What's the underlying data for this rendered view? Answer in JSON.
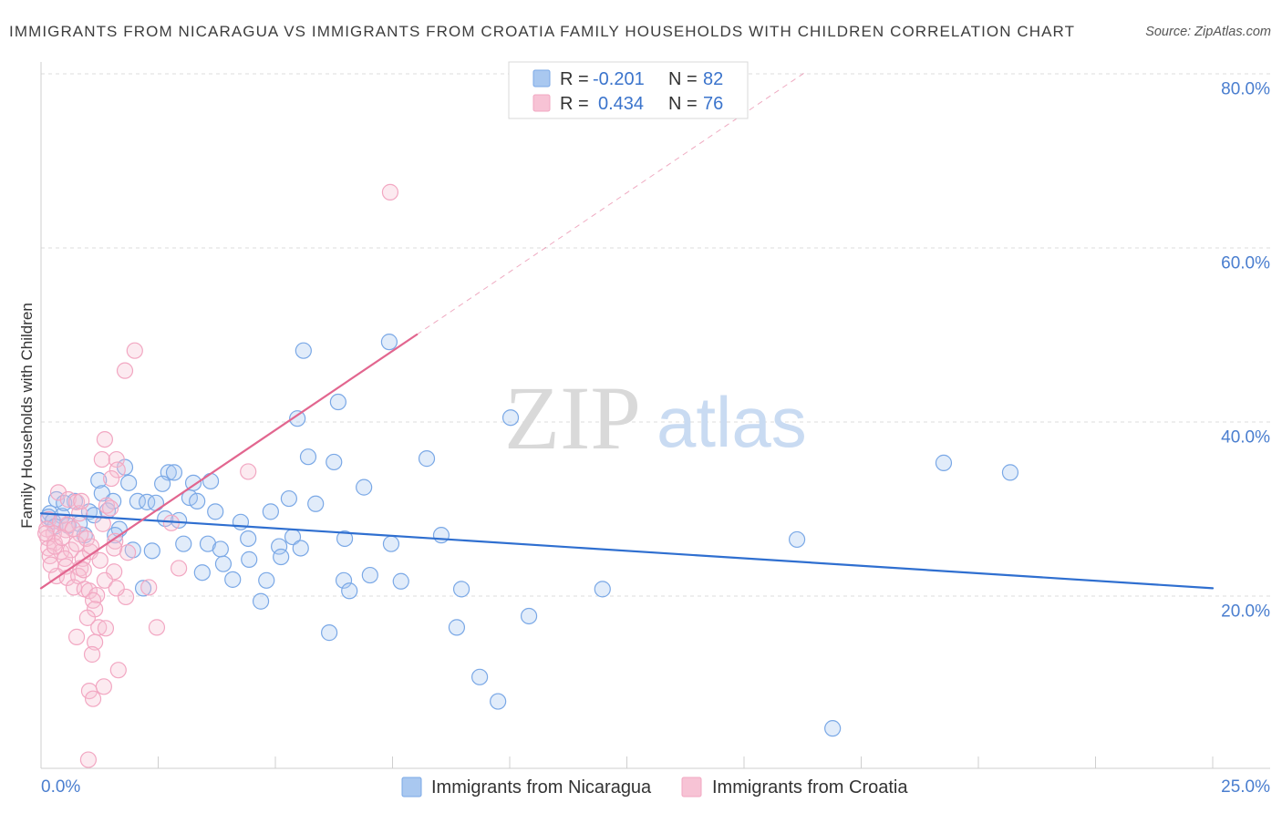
{
  "source": "Source: ZipAtlas.com",
  "watermark": {
    "zip": "ZIP",
    "atlas": "atlas"
  },
  "chart_data": {
    "type": "scatter",
    "title": "IMMIGRANTS FROM NICARAGUA VS IMMIGRANTS FROM CROATIA FAMILY HOUSEHOLDS WITH CHILDREN CORRELATION CHART",
    "xlabel": "",
    "ylabel": "Family Households with Children",
    "xlim": [
      0,
      25
    ],
    "ylim": [
      0,
      80
    ],
    "x_tick_step": 2.5,
    "x_ticks": [
      {
        "value": 0,
        "label": "0.0%"
      },
      {
        "value": 25,
        "label": "25.0%"
      }
    ],
    "y_ticks": [
      {
        "value": 20,
        "label": "20.0%"
      },
      {
        "value": 40,
        "label": "40.0%"
      },
      {
        "value": 60,
        "label": "60.0%"
      },
      {
        "value": 80,
        "label": "80.0%"
      }
    ],
    "grid": true,
    "stats_legend_position": "top-center",
    "series_legend_position": "bottom-center",
    "legend": {
      "r_label": "R =",
      "n_label": "N ="
    },
    "series": [
      {
        "name": "Immigrants from Nicaragua",
        "r": "-0.201",
        "n": "82",
        "color": "#7aa8e6",
        "fill": "#a9c8f0",
        "line_color": "#2f6fd0",
        "trend": {
          "intercept": 29.5,
          "slope": -0.344,
          "solid": [
            0,
            25
          ]
        },
        "points": [
          [
            5.6,
            48.2
          ],
          [
            7.43,
            49.2
          ],
          [
            5.47,
            40.4
          ],
          [
            6.34,
            42.3
          ],
          [
            10.02,
            40.5
          ],
          [
            8.23,
            35.8
          ],
          [
            5.7,
            36.0
          ],
          [
            6.25,
            35.4
          ],
          [
            6.89,
            32.5
          ],
          [
            19.26,
            35.3
          ],
          [
            20.68,
            34.2
          ],
          [
            1.79,
            34.8
          ],
          [
            1.23,
            33.3
          ],
          [
            1.87,
            33.0
          ],
          [
            2.72,
            34.2
          ],
          [
            2.84,
            34.2
          ],
          [
            2.59,
            32.9
          ],
          [
            3.25,
            33.0
          ],
          [
            3.62,
            33.2
          ],
          [
            1.3,
            31.8
          ],
          [
            3.17,
            31.3
          ],
          [
            3.33,
            30.9
          ],
          [
            1.54,
            30.9
          ],
          [
            2.06,
            30.9
          ],
          [
            2.26,
            30.8
          ],
          [
            2.45,
            30.7
          ],
          [
            5.29,
            31.2
          ],
          [
            5.86,
            30.6
          ],
          [
            4.9,
            29.7
          ],
          [
            3.72,
            29.7
          ],
          [
            0.33,
            31.1
          ],
          [
            0.72,
            30.9
          ],
          [
            0.19,
            29.5
          ],
          [
            0.45,
            29.2
          ],
          [
            0.16,
            29.1
          ],
          [
            0.25,
            28.6
          ],
          [
            1.03,
            29.7
          ],
          [
            1.13,
            29.3
          ],
          [
            1.42,
            29.8
          ],
          [
            2.65,
            28.9
          ],
          [
            2.94,
            28.7
          ],
          [
            4.26,
            28.5
          ],
          [
            0.58,
            28.1
          ],
          [
            0.82,
            28.3
          ],
          [
            1.67,
            27.7
          ],
          [
            1.58,
            27.0
          ],
          [
            0.93,
            27.0
          ],
          [
            4.42,
            26.6
          ],
          [
            5.37,
            26.8
          ],
          [
            6.48,
            26.6
          ],
          [
            8.54,
            27.0
          ],
          [
            16.13,
            26.5
          ],
          [
            3.04,
            26.0
          ],
          [
            3.56,
            26.0
          ],
          [
            1.96,
            25.3
          ],
          [
            2.37,
            25.2
          ],
          [
            3.83,
            25.4
          ],
          [
            5.08,
            25.7
          ],
          [
            5.54,
            25.5
          ],
          [
            7.47,
            26.0
          ],
          [
            5.12,
            24.5
          ],
          [
            4.44,
            24.2
          ],
          [
            3.89,
            23.7
          ],
          [
            3.44,
            22.7
          ],
          [
            4.81,
            21.8
          ],
          [
            4.09,
            21.9
          ],
          [
            6.46,
            21.8
          ],
          [
            7.02,
            22.4
          ],
          [
            7.68,
            21.7
          ],
          [
            2.18,
            20.9
          ],
          [
            6.58,
            20.6
          ],
          [
            8.97,
            20.8
          ],
          [
            11.98,
            20.8
          ],
          [
            4.69,
            19.4
          ],
          [
            6.15,
            15.8
          ],
          [
            8.87,
            16.4
          ],
          [
            10.41,
            17.7
          ],
          [
            9.36,
            10.7
          ],
          [
            9.75,
            7.9
          ],
          [
            16.89,
            4.8
          ],
          [
            0.49,
            30.7
          ],
          [
            0.3,
            28.0
          ]
        ]
      },
      {
        "name": "Immigrants from Croatia",
        "r": "0.434",
        "n": "76",
        "color": "#f2a7c2",
        "fill": "#f7c3d5",
        "line_color": "#e2668f",
        "trend": {
          "intercept": 20.9,
          "slope": 3.635,
          "solid": [
            0,
            8.02
          ],
          "dashed": [
            8.02,
            16.3
          ]
        },
        "points": [
          [
            7.45,
            66.4
          ],
          [
            2.0,
            48.2
          ],
          [
            1.79,
            45.9
          ],
          [
            1.36,
            38.0
          ],
          [
            1.3,
            35.7
          ],
          [
            1.61,
            35.7
          ],
          [
            1.63,
            34.5
          ],
          [
            4.42,
            34.3
          ],
          [
            1.5,
            33.5
          ],
          [
            0.37,
            31.9
          ],
          [
            0.58,
            31.1
          ],
          [
            0.76,
            30.8
          ],
          [
            1.4,
            30.4
          ],
          [
            1.48,
            30.1
          ],
          [
            0.82,
            29.5
          ],
          [
            0.16,
            28.8
          ],
          [
            0.41,
            28.5
          ],
          [
            1.32,
            28.3
          ],
          [
            2.78,
            28.4
          ],
          [
            0.12,
            27.7
          ],
          [
            0.27,
            27.2
          ],
          [
            0.53,
            27.6
          ],
          [
            0.84,
            27.1
          ],
          [
            0.14,
            26.7
          ],
          [
            0.29,
            26.1
          ],
          [
            1.58,
            26.3
          ],
          [
            0.16,
            25.5
          ],
          [
            0.43,
            25.1
          ],
          [
            0.64,
            25.3
          ],
          [
            0.76,
            26.0
          ],
          [
            1.05,
            25.1
          ],
          [
            1.56,
            25.5
          ],
          [
            1.85,
            25.0
          ],
          [
            0.19,
            24.6
          ],
          [
            0.51,
            24.3
          ],
          [
            0.89,
            24.3
          ],
          [
            1.26,
            24.1
          ],
          [
            0.53,
            23.4
          ],
          [
            0.84,
            23.2
          ],
          [
            1.56,
            22.8
          ],
          [
            2.94,
            23.2
          ],
          [
            0.33,
            22.3
          ],
          [
            0.56,
            22.1
          ],
          [
            0.8,
            22.3
          ],
          [
            0.7,
            21.0
          ],
          [
            0.93,
            20.8
          ],
          [
            1.03,
            20.6
          ],
          [
            1.19,
            20.1
          ],
          [
            2.3,
            21.0
          ],
          [
            1.81,
            19.9
          ],
          [
            1.11,
            19.5
          ],
          [
            1.15,
            18.5
          ],
          [
            0.99,
            17.5
          ],
          [
            1.23,
            16.4
          ],
          [
            1.38,
            16.3
          ],
          [
            2.47,
            16.4
          ],
          [
            0.76,
            15.3
          ],
          [
            1.15,
            14.7
          ],
          [
            1.09,
            13.3
          ],
          [
            1.65,
            11.5
          ],
          [
            1.34,
            9.6
          ],
          [
            1.03,
            9.1
          ],
          [
            1.11,
            8.2
          ],
          [
            1.01,
            1.2
          ],
          [
            0.56,
            28.2
          ],
          [
            0.86,
            30.9
          ],
          [
            0.29,
            25.7
          ],
          [
            0.68,
            27.7
          ],
          [
            0.97,
            26.6
          ],
          [
            0.21,
            23.6
          ],
          [
            1.36,
            21.8
          ],
          [
            0.45,
            26.7
          ],
          [
            1.07,
            25.7
          ],
          [
            0.91,
            23.0
          ],
          [
            0.1,
            27.2
          ],
          [
            1.61,
            20.9
          ]
        ]
      }
    ]
  }
}
